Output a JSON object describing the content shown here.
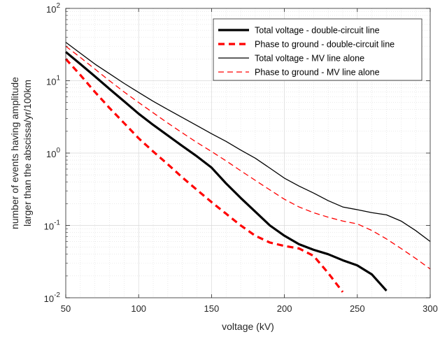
{
  "chart_data": {
    "type": "line",
    "title": "",
    "xlabel": "voltage (kV)",
    "ylabel_lines": [
      "number of events having amplitude",
      "larger than the abscissa/yr/100km"
    ],
    "y_scale": "log",
    "xlim": [
      50,
      300
    ],
    "ylim": [
      0.01,
      100
    ],
    "grid": true,
    "grid_minor": true,
    "legend_position": "top-right",
    "x_ticks": [
      {
        "value": 50,
        "label": "50"
      },
      {
        "value": 100,
        "label": "100"
      },
      {
        "value": 150,
        "label": "150"
      },
      {
        "value": 200,
        "label": "200"
      },
      {
        "value": 250,
        "label": "250"
      },
      {
        "value": 300,
        "label": "300"
      }
    ],
    "y_ticks": [
      {
        "value": 0.01,
        "mantissa": "10",
        "exponent": "-2"
      },
      {
        "value": 0.1,
        "mantissa": "10",
        "exponent": "-1"
      },
      {
        "value": 1,
        "mantissa": "10",
        "exponent": "0"
      },
      {
        "value": 10,
        "mantissa": "10",
        "exponent": "1"
      },
      {
        "value": 100,
        "mantissa": "10",
        "exponent": "2"
      }
    ],
    "series": [
      {
        "name": "Total voltage - double-circuit line",
        "color": "#000000",
        "line_style": "solid",
        "line_weight": "thick",
        "points": [
          [
            50,
            25
          ],
          [
            60,
            17
          ],
          [
            70,
            11.5
          ],
          [
            80,
            7.7
          ],
          [
            90,
            5.2
          ],
          [
            100,
            3.5
          ],
          [
            110,
            2.45
          ],
          [
            120,
            1.75
          ],
          [
            130,
            1.25
          ],
          [
            140,
            0.9
          ],
          [
            150,
            0.63
          ],
          [
            160,
            0.38
          ],
          [
            170,
            0.24
          ],
          [
            180,
            0.155
          ],
          [
            190,
            0.1
          ],
          [
            200,
            0.072
          ],
          [
            210,
            0.055
          ],
          [
            220,
            0.046
          ],
          [
            230,
            0.04
          ],
          [
            240,
            0.033
          ],
          [
            250,
            0.028
          ],
          [
            260,
            0.021
          ],
          [
            270,
            0.0125
          ]
        ]
      },
      {
        "name": "Phase to ground - double-circuit line",
        "color": "#ff0000",
        "line_style": "dashed",
        "line_weight": "thick",
        "points": [
          [
            50,
            20
          ],
          [
            60,
            12
          ],
          [
            70,
            7
          ],
          [
            80,
            4.2
          ],
          [
            90,
            2.6
          ],
          [
            100,
            1.6
          ],
          [
            110,
            1.05
          ],
          [
            120,
            0.7
          ],
          [
            130,
            0.46
          ],
          [
            140,
            0.31
          ],
          [
            150,
            0.21
          ],
          [
            160,
            0.145
          ],
          [
            170,
            0.1
          ],
          [
            180,
            0.072
          ],
          [
            190,
            0.058
          ],
          [
            200,
            0.052
          ],
          [
            210,
            0.048
          ],
          [
            220,
            0.038
          ],
          [
            230,
            0.022
          ],
          [
            240,
            0.012
          ]
        ]
      },
      {
        "name": "Total voltage - MV line alone",
        "color": "#000000",
        "line_style": "solid",
        "line_weight": "thin",
        "points": [
          [
            50,
            34
          ],
          [
            60,
            24
          ],
          [
            70,
            17
          ],
          [
            80,
            12.5
          ],
          [
            90,
            9.2
          ],
          [
            100,
            6.9
          ],
          [
            110,
            5.2
          ],
          [
            120,
            4
          ],
          [
            130,
            3.1
          ],
          [
            140,
            2.4
          ],
          [
            150,
            1.85
          ],
          [
            160,
            1.45
          ],
          [
            170,
            1.1
          ],
          [
            180,
            0.85
          ],
          [
            190,
            0.62
          ],
          [
            200,
            0.45
          ],
          [
            210,
            0.35
          ],
          [
            220,
            0.28
          ],
          [
            230,
            0.22
          ],
          [
            240,
            0.18
          ],
          [
            250,
            0.165
          ],
          [
            260,
            0.15
          ],
          [
            270,
            0.14
          ],
          [
            280,
            0.115
          ],
          [
            290,
            0.085
          ],
          [
            300,
            0.06
          ]
        ]
      },
      {
        "name": "Phase to ground - MV line alone",
        "color": "#ff0000",
        "line_style": "dashed",
        "line_weight": "thin",
        "points": [
          [
            50,
            30
          ],
          [
            60,
            21
          ],
          [
            70,
            14.5
          ],
          [
            80,
            10
          ],
          [
            90,
            7
          ],
          [
            100,
            5
          ],
          [
            110,
            3.6
          ],
          [
            120,
            2.6
          ],
          [
            130,
            1.9
          ],
          [
            140,
            1.4
          ],
          [
            150,
            1.05
          ],
          [
            160,
            0.78
          ],
          [
            170,
            0.57
          ],
          [
            180,
            0.42
          ],
          [
            190,
            0.31
          ],
          [
            200,
            0.23
          ],
          [
            210,
            0.18
          ],
          [
            220,
            0.15
          ],
          [
            230,
            0.13
          ],
          [
            240,
            0.115
          ],
          [
            250,
            0.105
          ],
          [
            260,
            0.085
          ],
          [
            270,
            0.065
          ],
          [
            280,
            0.048
          ],
          [
            290,
            0.035
          ],
          [
            300,
            0.025
          ]
        ]
      }
    ]
  }
}
